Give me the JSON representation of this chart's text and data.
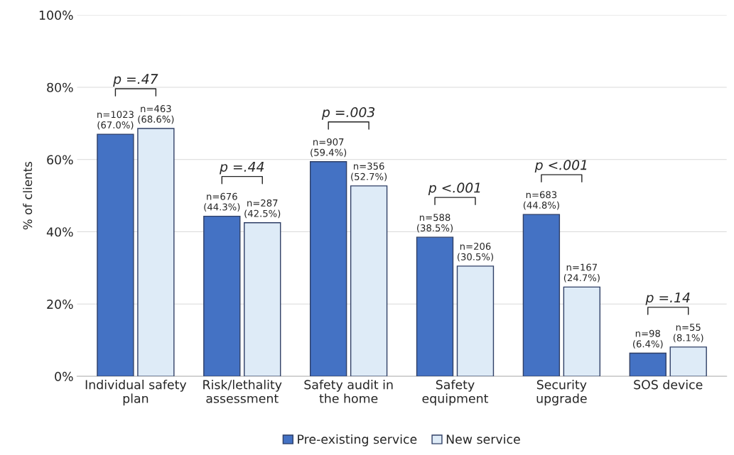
{
  "chart_data": {
    "type": "bar",
    "categories": [
      "Individual safety\nplan",
      "Risk/lethality\nassessment",
      "Safety audit in\nthe home",
      "Safety\nequipment",
      "Security\nupgrade",
      "SOS device"
    ],
    "series": [
      {
        "name": "Pre-existing service",
        "color": "#4472c4",
        "values": [
          67.0,
          44.3,
          59.4,
          38.5,
          44.8,
          6.4
        ],
        "value_labels": [
          "n=1023\n(67.0%)",
          "n=676\n(44.3%)",
          "n=907\n(59.4%)",
          "n=588\n(38.5%)",
          "n=683\n(44.8%)",
          "n=98\n(6.4%)"
        ]
      },
      {
        "name": "New service",
        "color": "#deebf7",
        "values": [
          68.6,
          42.5,
          52.7,
          30.5,
          24.7,
          8.1
        ],
        "value_labels": [
          "n=463\n(68.6%)",
          "n=287\n(42.5%)",
          "n=356\n(52.7%)",
          "n=206\n(30.5%)",
          "n=167\n(24.7%)",
          "n=55\n(8.1%)"
        ]
      }
    ],
    "ylabel": "% of clients",
    "ylim": [
      0,
      100
    ],
    "yticks": [
      {
        "value": 0,
        "label": "0%"
      },
      {
        "value": 20,
        "label": "20%"
      },
      {
        "value": 40,
        "label": "40%"
      },
      {
        "value": 60,
        "label": "60%"
      },
      {
        "value": 80,
        "label": "80%"
      },
      {
        "value": 100,
        "label": "100%"
      }
    ],
    "annotations": [
      "p =.47",
      "p =.44",
      "p =.003",
      "p <.001",
      "p <.001",
      "p =.14"
    ],
    "grid": "y",
    "legend": "bottom"
  }
}
